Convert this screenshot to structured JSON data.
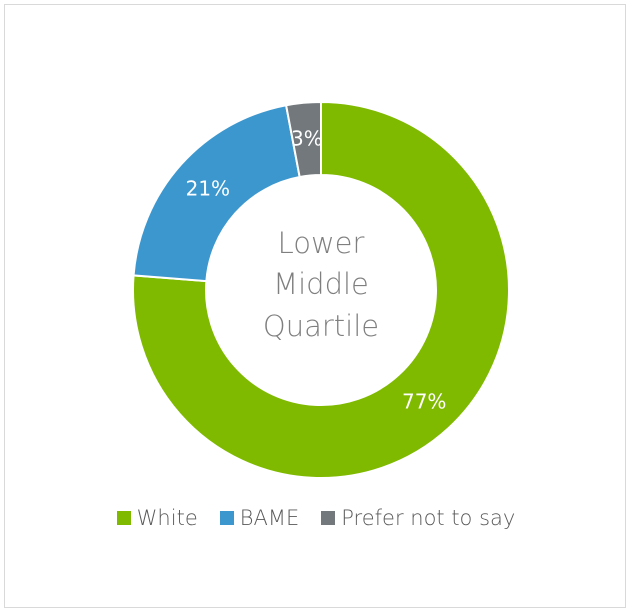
{
  "chart_data": {
    "type": "donut",
    "title_lines": [
      "Lower",
      "Middle",
      "Quartile"
    ],
    "categories": [
      "White",
      "BAME",
      "Prefer not to say"
    ],
    "values": [
      77,
      21,
      3
    ],
    "labels": [
      "77%",
      "21%",
      "3%"
    ],
    "colors": [
      "#7fba00",
      "#3c97cf",
      "#72787c"
    ],
    "legend_position": "bottom"
  },
  "legend": {
    "items": [
      {
        "label": "White",
        "color": "#7fba00"
      },
      {
        "label": "BAME",
        "color": "#3c97cf"
      },
      {
        "label": "Prefer not to say",
        "color": "#72787c"
      }
    ]
  }
}
